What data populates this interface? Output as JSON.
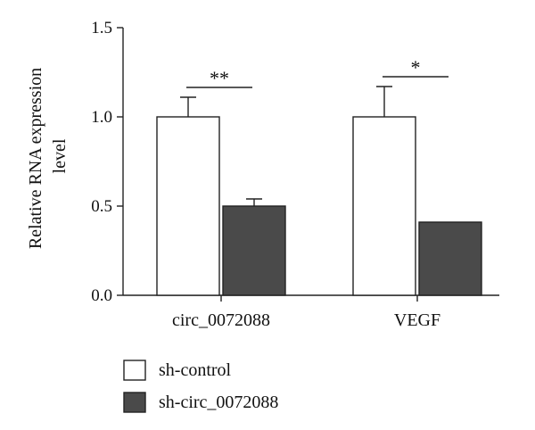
{
  "chart_data": {
    "type": "bar",
    "title": "",
    "ylabel": [
      "Relative RNA expression",
      "level"
    ],
    "xlabel": "",
    "ylim": [
      0,
      1.5
    ],
    "yticks": [
      "0.0",
      "0.5",
      "1.0",
      "1.5"
    ],
    "categories": [
      "circ_0072088",
      "VEGF"
    ],
    "series": [
      {
        "name": "sh-control",
        "values": [
          1.0,
          1.0
        ],
        "errors": [
          0.11,
          0.17
        ],
        "color": "#ffffff"
      },
      {
        "name": "sh-circ_0072088",
        "values": [
          0.5,
          0.41
        ],
        "errors": [
          0.04,
          0.0
        ],
        "color": "#4a4a4a"
      }
    ],
    "significance": [
      "**",
      "*"
    ],
    "legend_position": "bottom-left",
    "grid": false
  }
}
